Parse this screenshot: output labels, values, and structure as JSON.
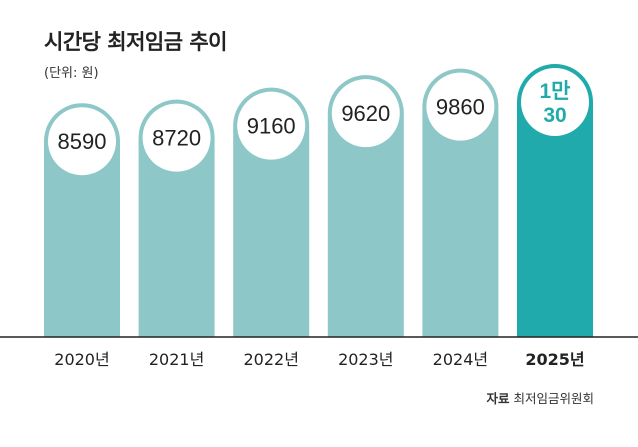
{
  "chart_data": {
    "type": "bar",
    "title": "시간당 최저임금 추이",
    "subtitle": "(단위: 원)",
    "categories": [
      "2020년",
      "2021년",
      "2022년",
      "2023년",
      "2024년",
      "2025년"
    ],
    "values": [
      8590,
      8720,
      9160,
      9620,
      9860,
      10030
    ],
    "value_labels": [
      "8590",
      "8720",
      "9160",
      "9620",
      "9860",
      "1만\n30"
    ],
    "highlight_index": 5,
    "ylim": [
      0,
      10030
    ],
    "colors": {
      "bar": "#8dc7c8",
      "highlight": "#21aaab",
      "label_text": "#222222",
      "highlight_text": "#21aaab",
      "baseline": "#222222"
    },
    "grid": false
  },
  "source": {
    "label": "자료",
    "text": "최저임금위원회"
  }
}
